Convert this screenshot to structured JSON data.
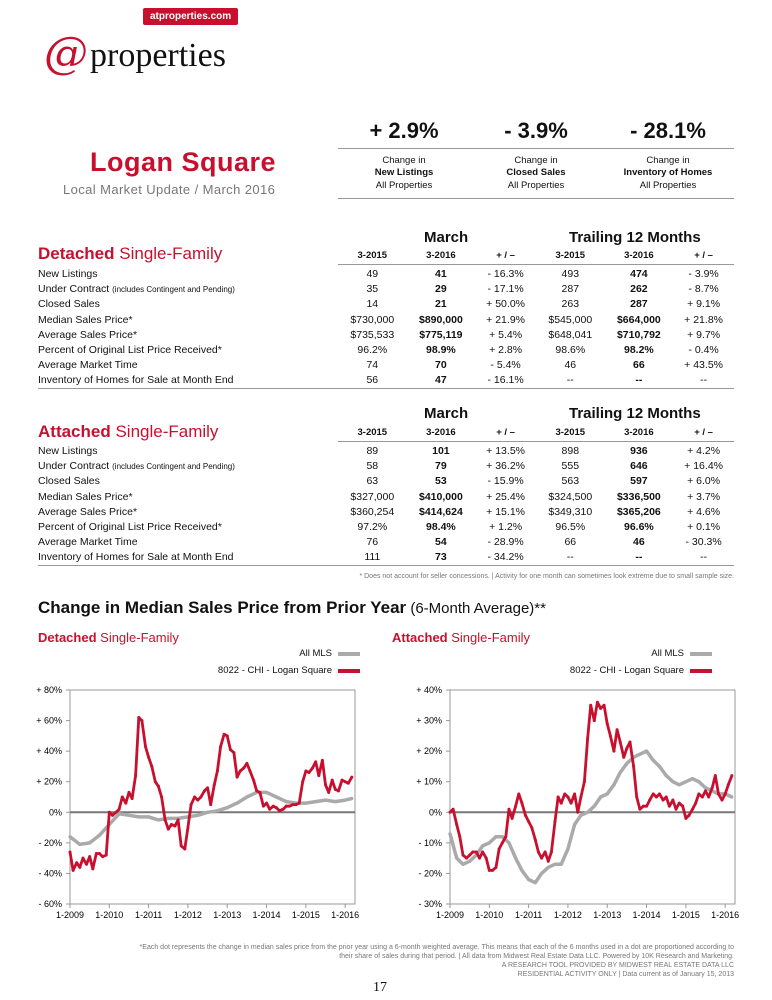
{
  "header": {
    "site_badge": "atproperties.com",
    "logo_at": "@",
    "logo_word": "properties"
  },
  "title": "Logan Square",
  "subtitle": "Local Market Update / March 2016",
  "summary": [
    {
      "value": "+ 2.9%",
      "line1": "Change in",
      "line2": "New Listings",
      "line3": "All Properties"
    },
    {
      "value": "- 3.9%",
      "line1": "Change in",
      "line2": "Closed Sales",
      "line3": "All Properties"
    },
    {
      "value": "- 28.1%",
      "line1": "Change in",
      "line2": "Inventory of Homes",
      "line3": "All Properties"
    }
  ],
  "period_labels": {
    "march": "March",
    "trailing": "Trailing 12 Months"
  },
  "columns": [
    "3-2015",
    "3-2016",
    "+ / –",
    "3-2015",
    "3-2016",
    "+ / –"
  ],
  "detached": {
    "title_bold": "Detached",
    "title_rest": " Single-Family",
    "rows": [
      [
        "New Listings",
        "",
        "49",
        "41",
        "- 16.3%",
        "493",
        "474",
        "- 3.9%"
      ],
      [
        "Under Contract",
        "(includes Contingent and Pending)",
        "35",
        "29",
        "- 17.1%",
        "287",
        "262",
        "- 8.7%"
      ],
      [
        "Closed Sales",
        "",
        "14",
        "21",
        "+ 50.0%",
        "263",
        "287",
        "+ 9.1%"
      ],
      [
        "Median Sales Price*",
        "",
        "$730,000",
        "$890,000",
        "+ 21.9%",
        "$545,000",
        "$664,000",
        "+ 21.8%"
      ],
      [
        "Average Sales Price*",
        "",
        "$735,533",
        "$775,119",
        "+ 5.4%",
        "$648,041",
        "$710,792",
        "+ 9.7%"
      ],
      [
        "Percent of Original List Price Received*",
        "",
        "96.2%",
        "98.9%",
        "+ 2.8%",
        "98.6%",
        "98.2%",
        "- 0.4%"
      ],
      [
        "Average Market Time",
        "",
        "74",
        "70",
        "- 5.4%",
        "46",
        "66",
        "+ 43.5%"
      ],
      [
        "Inventory of Homes for Sale at Month End",
        "",
        "56",
        "47",
        "- 16.1%",
        "--",
        "--",
        "--"
      ]
    ]
  },
  "attached": {
    "title_bold": "Attached",
    "title_rest": " Single-Family",
    "rows": [
      [
        "New Listings",
        "",
        "89",
        "101",
        "+ 13.5%",
        "898",
        "936",
        "+ 4.2%"
      ],
      [
        "Under Contract",
        "(includes Contingent and Pending)",
        "58",
        "79",
        "+ 36.2%",
        "555",
        "646",
        "+ 16.4%"
      ],
      [
        "Closed Sales",
        "",
        "63",
        "53",
        "- 15.9%",
        "563",
        "597",
        "+ 6.0%"
      ],
      [
        "Median Sales Price*",
        "",
        "$327,000",
        "$410,000",
        "+ 25.4%",
        "$324,500",
        "$336,500",
        "+ 3.7%"
      ],
      [
        "Average Sales Price*",
        "",
        "$360,254",
        "$414,624",
        "+ 15.1%",
        "$349,310",
        "$365,206",
        "+ 4.6%"
      ],
      [
        "Percent of Original List Price Received*",
        "",
        "97.2%",
        "98.4%",
        "+ 1.2%",
        "96.5%",
        "96.6%",
        "+ 0.1%"
      ],
      [
        "Average Market Time",
        "",
        "76",
        "54",
        "- 28.9%",
        "66",
        "46",
        "- 30.3%"
      ],
      [
        "Inventory of Homes for Sale at Month End",
        "",
        "111",
        "73",
        "- 34.2%",
        "--",
        "--",
        "--"
      ]
    ]
  },
  "footnote_table": "* Does not account for seller concessions.  |  Activity for one month can sometimes look extreme due to small sample size.",
  "charts_heading": {
    "bold": "Change in Median Sales Price from Prior Year",
    "rest": " (6-Month Average)**"
  },
  "colors": {
    "accent": "#c8102e",
    "mls": "#aaaaaa"
  },
  "chart_data": [
    {
      "type": "line",
      "title_bold": "Detached",
      "title_rest": " Single-Family",
      "ylim": [
        -60,
        80
      ],
      "yticks": [
        -60,
        -40,
        -20,
        0,
        20,
        40,
        60,
        80
      ],
      "ytick_labels": [
        "- 60%",
        "- 40%",
        "- 20%",
        "0%",
        "+ 20%",
        "+ 40%",
        "+ 60%",
        "+ 80%"
      ],
      "xlim": [
        2009,
        2016.25
      ],
      "xticks": [
        2009,
        2010,
        2011,
        2012,
        2013,
        2014,
        2015,
        2016
      ],
      "xtick_labels": [
        "1-2009",
        "1-2010",
        "1-2011",
        "1-2012",
        "1-2013",
        "1-2014",
        "1-2015",
        "1-2016"
      ],
      "legend": "top-right",
      "series": [
        {
          "name": "All MLS",
          "color": "#aaaaaa",
          "x": [
            2009,
            2009.25,
            2009.5,
            2009.75,
            2010,
            2010.25,
            2010.5,
            2010.75,
            2011,
            2011.25,
            2011.5,
            2011.75,
            2012,
            2012.25,
            2012.5,
            2012.75,
            2013,
            2013.25,
            2013.5,
            2013.75,
            2014,
            2014.25,
            2014.5,
            2014.75,
            2015,
            2015.25,
            2015.5,
            2015.75,
            2016,
            2016.17
          ],
          "y": [
            -16,
            -21,
            -20,
            -15,
            -8,
            -1,
            -2,
            -3,
            -3,
            -5,
            -4,
            -4,
            -3,
            -2,
            0,
            1,
            3,
            6,
            10,
            13,
            13,
            10,
            7,
            6,
            6,
            7,
            8,
            7,
            8,
            9
          ]
        },
        {
          "name": "8022 - CHI - Logan Square",
          "color": "#c8102e",
          "x": [
            2009,
            2009.08,
            2009.17,
            2009.25,
            2009.33,
            2009.42,
            2009.5,
            2009.58,
            2009.67,
            2009.75,
            2009.83,
            2009.92,
            2010,
            2010.08,
            2010.17,
            2010.25,
            2010.33,
            2010.42,
            2010.5,
            2010.58,
            2010.67,
            2010.75,
            2010.83,
            2010.92,
            2011,
            2011.08,
            2011.17,
            2011.25,
            2011.33,
            2011.42,
            2011.5,
            2011.58,
            2011.67,
            2011.75,
            2011.83,
            2011.92,
            2012,
            2012.08,
            2012.17,
            2012.25,
            2012.33,
            2012.42,
            2012.5,
            2012.58,
            2012.67,
            2012.75,
            2012.83,
            2012.92,
            2013,
            2013.08,
            2013.17,
            2013.25,
            2013.33,
            2013.42,
            2013.5,
            2013.58,
            2013.67,
            2013.75,
            2013.83,
            2013.92,
            2014,
            2014.08,
            2014.17,
            2014.25,
            2014.33,
            2014.42,
            2014.5,
            2014.58,
            2014.67,
            2014.75,
            2014.83,
            2014.92,
            2015,
            2015.08,
            2015.17,
            2015.25,
            2015.33,
            2015.42,
            2015.5,
            2015.58,
            2015.67,
            2015.75,
            2015.83,
            2015.92,
            2016,
            2016.08,
            2016.17
          ],
          "y": [
            -26,
            -38,
            -33,
            -36,
            -30,
            -34,
            -29,
            -37,
            -27,
            -27,
            -29,
            -28,
            0,
            -2,
            0,
            2,
            10,
            6,
            13,
            9,
            24,
            62,
            60,
            43,
            36,
            30,
            20,
            17,
            10,
            -5,
            -11,
            -8,
            -9,
            -5,
            -22,
            -24,
            -10,
            5,
            10,
            8,
            10,
            14,
            16,
            5,
            18,
            27,
            43,
            51,
            50,
            41,
            39,
            23,
            27,
            29,
            32,
            27,
            21,
            14,
            13,
            4,
            6,
            2,
            4,
            3,
            1,
            2,
            4,
            4,
            5,
            5,
            6,
            20,
            27,
            26,
            29,
            33,
            24,
            34,
            18,
            13,
            21,
            15,
            14,
            21,
            20,
            19,
            23
          ]
        }
      ]
    },
    {
      "type": "line",
      "title_bold": "Attached",
      "title_rest": " Single-Family",
      "ylim": [
        -30,
        40
      ],
      "yticks": [
        -30,
        -20,
        -10,
        0,
        10,
        20,
        30,
        40
      ],
      "ytick_labels": [
        "- 30%",
        "- 20%",
        "- 10%",
        "0%",
        "+ 10%",
        "+ 20%",
        "+ 30%",
        "+ 40%"
      ],
      "xlim": [
        2009,
        2016.25
      ],
      "xticks": [
        2009,
        2010,
        2011,
        2012,
        2013,
        2014,
        2015,
        2016
      ],
      "xtick_labels": [
        "1-2009",
        "1-2010",
        "1-2011",
        "1-2012",
        "1-2013",
        "1-2014",
        "1-2015",
        "1-2016"
      ],
      "legend": "top-right",
      "series": [
        {
          "name": "All MLS",
          "color": "#aaaaaa",
          "x": [
            2009,
            2009.17,
            2009.33,
            2009.5,
            2009.67,
            2009.83,
            2010,
            2010.17,
            2010.33,
            2010.5,
            2010.67,
            2010.83,
            2011,
            2011.17,
            2011.33,
            2011.5,
            2011.67,
            2011.83,
            2012,
            2012.17,
            2012.33,
            2012.5,
            2012.67,
            2012.83,
            2013,
            2013.17,
            2013.33,
            2013.5,
            2013.67,
            2013.83,
            2014,
            2014.17,
            2014.33,
            2014.5,
            2014.67,
            2014.83,
            2015,
            2015.17,
            2015.33,
            2015.5,
            2015.67,
            2015.83,
            2016,
            2016.17
          ],
          "y": [
            -7,
            -15,
            -17,
            -16,
            -14,
            -11,
            -10,
            -8,
            -8,
            -10,
            -15,
            -19,
            -22,
            -23,
            -20,
            -18,
            -17,
            -17,
            -12,
            -4,
            -1,
            0,
            2,
            5,
            6,
            9,
            13,
            16,
            18,
            19,
            20,
            17,
            15,
            12,
            10,
            9,
            10,
            11,
            10,
            8,
            7,
            6,
            6,
            5
          ]
        },
        {
          "name": "8022 - CHI - Logan Square",
          "color": "#c8102e",
          "x": [
            2009,
            2009.08,
            2009.17,
            2009.25,
            2009.33,
            2009.42,
            2009.5,
            2009.58,
            2009.67,
            2009.75,
            2009.83,
            2009.92,
            2010,
            2010.08,
            2010.17,
            2010.25,
            2010.33,
            2010.42,
            2010.5,
            2010.58,
            2010.67,
            2010.75,
            2010.83,
            2010.92,
            2011,
            2011.08,
            2011.17,
            2011.25,
            2011.33,
            2011.42,
            2011.5,
            2011.58,
            2011.67,
            2011.75,
            2011.83,
            2011.92,
            2012,
            2012.08,
            2012.17,
            2012.25,
            2012.33,
            2012.42,
            2012.5,
            2012.58,
            2012.67,
            2012.75,
            2012.83,
            2012.92,
            2013,
            2013.08,
            2013.17,
            2013.25,
            2013.33,
            2013.42,
            2013.5,
            2013.58,
            2013.67,
            2013.75,
            2013.83,
            2013.92,
            2014,
            2014.08,
            2014.17,
            2014.25,
            2014.33,
            2014.42,
            2014.5,
            2014.58,
            2014.67,
            2014.75,
            2014.83,
            2014.92,
            2015,
            2015.08,
            2015.17,
            2015.25,
            2015.33,
            2015.42,
            2015.5,
            2015.58,
            2015.67,
            2015.75,
            2015.83,
            2015.92,
            2016,
            2016.08,
            2016.17
          ],
          "y": [
            0,
            1,
            -4,
            -8,
            -14,
            -15,
            -14,
            -13,
            -13,
            -15,
            -13,
            -15,
            -19,
            -19,
            -18,
            -12,
            -10,
            -8,
            1,
            -2,
            2,
            6,
            3,
            -1,
            -3,
            -5,
            -9,
            -13,
            -15,
            -13,
            -16,
            -13,
            -3,
            5,
            3,
            6,
            5,
            3,
            6,
            0,
            5,
            10,
            24,
            35,
            30,
            36,
            34,
            35,
            29,
            25,
            20,
            27,
            23,
            18,
            21,
            23,
            15,
            5,
            1,
            2,
            2,
            4,
            6,
            5,
            6,
            4,
            5,
            2,
            4,
            1,
            3,
            2,
            -2,
            -1,
            1,
            3,
            6,
            5,
            7,
            5,
            8,
            12,
            6,
            4,
            6,
            9,
            12
          ]
        }
      ]
    }
  ],
  "footnote_chart_1": "*Each dot represents the change in median sales price from the prior year using a 6-month weighted average. This means that each of the 6 months used in a dot are proportioned according to their share of sales during that period.  |  All data from Midwest Real Estate Data LLC. Powered by 10K Research and Marketing.",
  "footnote_chart_2": "A RESEARCH TOOL PROVIDED BY MIDWEST REAL ESTATE DATA LLC",
  "footnote_chart_3": "RESIDENTIAL ACTIVITY ONLY  |  Data current as of January 15, 2013",
  "page_number": "17"
}
